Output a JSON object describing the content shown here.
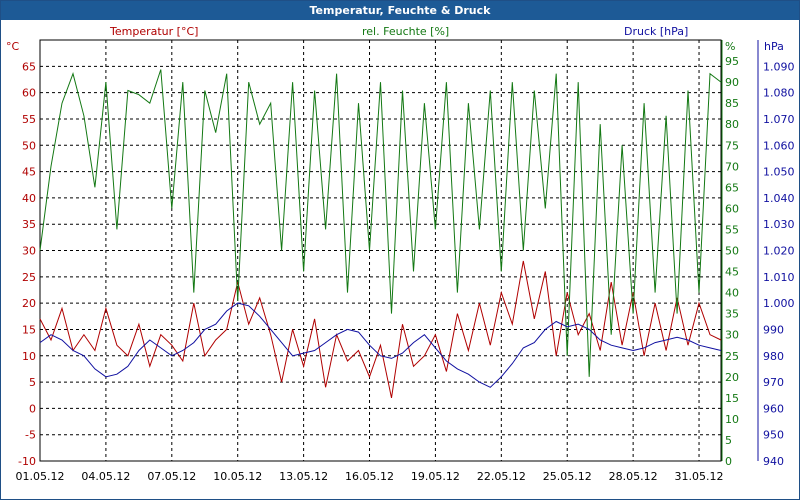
{
  "window": {
    "title": "Temperatur, Feuchte & Druck"
  },
  "colors": {
    "temperature": "#b00000",
    "humidity": "#137813",
    "pressure": "#1010a0",
    "grid": "#000000"
  },
  "chart_data": {
    "type": "line",
    "title": "Temperatur, Feuchte & Druck",
    "grid": true,
    "x": {
      "ticks": [
        "01.05.12",
        "04.05.12",
        "07.05.12",
        "10.05.12",
        "13.05.12",
        "16.05.12",
        "19.05.12",
        "22.05.12",
        "25.05.12",
        "28.05.12",
        "31.05.12"
      ],
      "start": "01.05.12",
      "end": "01.06.12"
    },
    "left_axis": {
      "unit": "°C",
      "label": "Temperatur [°C]",
      "range": [
        -10,
        70
      ],
      "ticks": [
        "-10",
        "-5",
        "0",
        "5",
        "10",
        "15",
        "20",
        "25",
        "30",
        "35",
        "40",
        "45",
        "50",
        "55",
        "60",
        "65"
      ]
    },
    "middle_axis": {
      "unit": "%",
      "label": "rel. Feuchte [%]",
      "range": [
        0,
        100
      ],
      "ticks": [
        "0",
        "5",
        "10",
        "15",
        "20",
        "25",
        "30",
        "35",
        "40",
        "45",
        "50",
        "55",
        "60",
        "65",
        "70",
        "75",
        "80",
        "85",
        "90",
        "95"
      ]
    },
    "right_axis": {
      "unit": "hPa",
      "label": "Druck [hPa]",
      "range": [
        940,
        1100
      ],
      "ticks": [
        "940",
        "950",
        "960",
        "970",
        "980",
        "990",
        "1.000",
        "1.010",
        "1.020",
        "1.030",
        "1.040",
        "1.050",
        "1.060",
        "1.070",
        "1.080",
        "1.090"
      ]
    },
    "series": [
      {
        "name": "Temperatur [°C]",
        "axis": "left",
        "x": [
          1,
          1.5,
          2,
          2.5,
          3,
          3.5,
          4,
          4.5,
          5,
          5.5,
          6,
          6.5,
          7,
          7.5,
          8,
          8.5,
          9,
          9.5,
          10,
          10.5,
          11,
          11.5,
          12,
          12.5,
          13,
          13.5,
          14,
          14.5,
          15,
          15.5,
          16,
          16.5,
          17,
          17.5,
          18,
          18.5,
          19,
          19.5,
          20,
          20.5,
          21,
          21.5,
          22,
          22.5,
          23,
          23.5,
          24,
          24.5,
          25,
          25.5,
          26,
          26.5,
          27,
          27.5,
          28,
          28.5,
          29,
          29.5,
          30,
          30.5,
          31,
          31.5,
          32
        ],
        "y": [
          17,
          13,
          19,
          11,
          14,
          11,
          19,
          12,
          10,
          16,
          8,
          14,
          12,
          9,
          20,
          10,
          13,
          15,
          24,
          16,
          21,
          14,
          5,
          15,
          8,
          17,
          4,
          14,
          9,
          11,
          6,
          12,
          2,
          16,
          8,
          10,
          14,
          7,
          18,
          11,
          20,
          12,
          22,
          16,
          28,
          17,
          26,
          10,
          22,
          14,
          18,
          11,
          24,
          12,
          22,
          10,
          20,
          11,
          21,
          12,
          20,
          14,
          13
        ]
      },
      {
        "name": "rel. Feuchte [%]",
        "axis": "middle",
        "x": [
          1,
          1.5,
          2,
          2.5,
          3,
          3.5,
          4,
          4.5,
          5,
          5.5,
          6,
          6.5,
          7,
          7.5,
          8,
          8.5,
          9,
          9.5,
          10,
          10.5,
          11,
          11.5,
          12,
          12.5,
          13,
          13.5,
          14,
          14.5,
          15,
          15.5,
          16,
          16.5,
          17,
          17.5,
          18,
          18.5,
          19,
          19.5,
          20,
          20.5,
          21,
          21.5,
          22,
          22.5,
          23,
          23.5,
          24,
          24.5,
          25,
          25.5,
          26,
          26.5,
          27,
          27.5,
          28,
          28.5,
          29,
          29.5,
          30,
          30.5,
          31,
          31.5,
          32
        ],
        "y": [
          50,
          70,
          85,
          92,
          82,
          65,
          90,
          55,
          88,
          87,
          85,
          93,
          60,
          90,
          40,
          88,
          78,
          92,
          38,
          90,
          80,
          85,
          50,
          90,
          45,
          88,
          55,
          92,
          40,
          85,
          50,
          90,
          35,
          88,
          45,
          85,
          55,
          90,
          40,
          85,
          55,
          88,
          45,
          90,
          50,
          88,
          60,
          92,
          25,
          90,
          20,
          80,
          30,
          75,
          35,
          85,
          40,
          82,
          35,
          88,
          40,
          92,
          90
        ]
      },
      {
        "name": "Druck [hPa]",
        "axis": "right",
        "x": [
          1,
          1.5,
          2,
          2.5,
          3,
          3.5,
          4,
          4.5,
          5,
          5.5,
          6,
          6.5,
          7,
          7.5,
          8,
          8.5,
          9,
          9.5,
          10,
          10.5,
          11,
          11.5,
          12,
          12.5,
          13,
          13.5,
          14,
          14.5,
          15,
          15.5,
          16,
          16.5,
          17,
          17.5,
          18,
          18.5,
          19,
          19.5,
          20,
          20.5,
          21,
          21.5,
          22,
          22.5,
          23,
          23.5,
          24,
          24.5,
          25,
          25.5,
          26,
          26.5,
          27,
          27.5,
          28,
          28.5,
          29,
          29.5,
          30,
          30.5,
          31,
          31.5,
          32
        ],
        "y": [
          985,
          988,
          986,
          982,
          980,
          975,
          972,
          973,
          976,
          982,
          986,
          983,
          980,
          982,
          985,
          990,
          992,
          997,
          1000,
          999,
          995,
          990,
          985,
          980,
          981,
          982,
          985,
          988,
          990,
          989,
          984,
          980,
          979,
          981,
          985,
          988,
          983,
          978,
          975,
          973,
          970,
          968,
          972,
          977,
          983,
          985,
          990,
          993,
          991,
          992,
          990,
          986,
          984,
          983,
          982,
          983,
          985,
          986,
          987,
          986,
          984,
          983,
          982
        ]
      }
    ]
  }
}
